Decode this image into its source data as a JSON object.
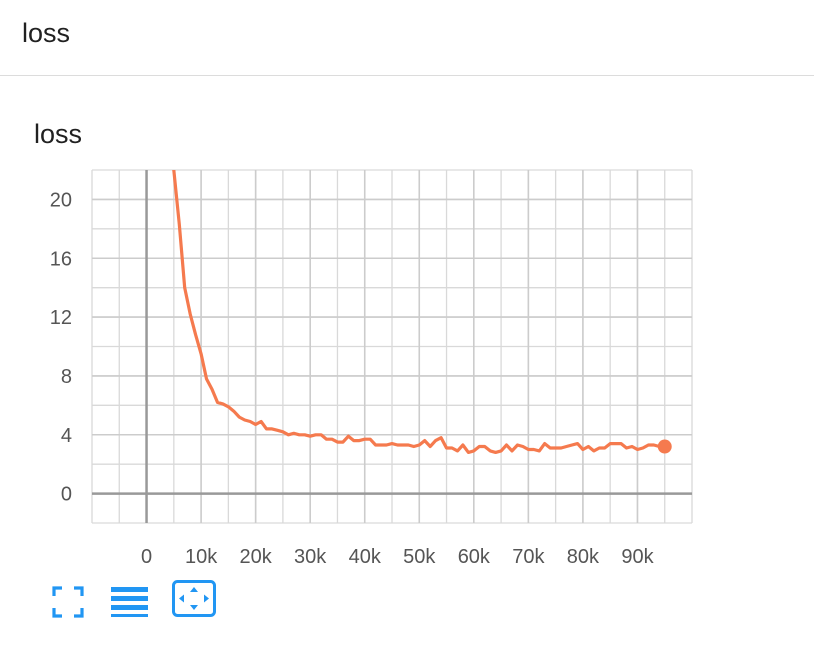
{
  "header": {
    "title": "loss"
  },
  "card": {
    "title": "loss"
  },
  "toolbar": {
    "buttons": [
      {
        "icon": "fullscreen-icon"
      },
      {
        "icon": "data-table-icon"
      },
      {
        "icon": "fit-domain-icon",
        "active": true
      }
    ]
  },
  "colors": {
    "series": "#f57a4e",
    "accent": "#2196f3",
    "grid": "#d9d9d9",
    "axis": "#999999"
  },
  "chart_data": {
    "type": "line",
    "title": "loss",
    "xlabel": "",
    "ylabel": "",
    "xlim": [
      -10000,
      100000
    ],
    "ylim": [
      -2,
      22
    ],
    "x_ticks": [
      0,
      10000,
      20000,
      30000,
      40000,
      50000,
      60000,
      70000,
      80000,
      90000
    ],
    "x_tick_labels": [
      "0",
      "10k",
      "20k",
      "30k",
      "40k",
      "50k",
      "60k",
      "70k",
      "80k",
      "90k"
    ],
    "y_ticks": [
      0,
      4,
      8,
      12,
      16,
      20
    ],
    "y_tick_labels": [
      "0",
      "4",
      "8",
      "12",
      "16",
      "20"
    ],
    "grid": true,
    "series": [
      {
        "name": "",
        "x": [
          5000,
          6000,
          7000,
          8000,
          9000,
          10000,
          11000,
          12000,
          13000,
          14000,
          15000,
          16000,
          17000,
          18000,
          19000,
          20000,
          21000,
          22000,
          23000,
          24000,
          25000,
          26000,
          27000,
          28000,
          29000,
          30000,
          31000,
          32000,
          33000,
          34000,
          35000,
          36000,
          37000,
          38000,
          39000,
          40000,
          41000,
          42000,
          43000,
          44000,
          45000,
          46000,
          47000,
          48000,
          49000,
          50000,
          51000,
          52000,
          53000,
          54000,
          55000,
          56000,
          57000,
          58000,
          59000,
          60000,
          61000,
          62000,
          63000,
          64000,
          65000,
          66000,
          67000,
          68000,
          69000,
          70000,
          71000,
          72000,
          73000,
          74000,
          75000,
          76000,
          77000,
          78000,
          79000,
          80000,
          81000,
          82000,
          83000,
          84000,
          85000,
          86000,
          87000,
          88000,
          89000,
          90000,
          91000,
          92000,
          93000,
          94000,
          95000
        ],
        "y": [
          22.0,
          18.3,
          14.0,
          12.2,
          10.8,
          9.5,
          7.8,
          7.1,
          6.2,
          6.1,
          5.9,
          5.6,
          5.2,
          5.0,
          4.9,
          4.7,
          4.9,
          4.4,
          4.4,
          4.3,
          4.2,
          4.0,
          4.1,
          4.0,
          4.0,
          3.9,
          4.0,
          4.0,
          3.7,
          3.7,
          3.5,
          3.5,
          3.9,
          3.6,
          3.6,
          3.7,
          3.7,
          3.3,
          3.3,
          3.3,
          3.4,
          3.3,
          3.3,
          3.3,
          3.2,
          3.3,
          3.6,
          3.2,
          3.6,
          3.8,
          3.1,
          3.1,
          2.9,
          3.3,
          2.8,
          2.9,
          3.2,
          3.2,
          2.9,
          2.8,
          2.9,
          3.3,
          2.9,
          3.3,
          3.2,
          3.0,
          3.0,
          2.9,
          3.4,
          3.1,
          3.1,
          3.1,
          3.2,
          3.3,
          3.4,
          3.0,
          3.2,
          2.9,
          3.1,
          3.1,
          3.4,
          3.4,
          3.4,
          3.1,
          3.2,
          3.0,
          3.1,
          3.3,
          3.3,
          3.2,
          3.2
        ]
      }
    ]
  }
}
